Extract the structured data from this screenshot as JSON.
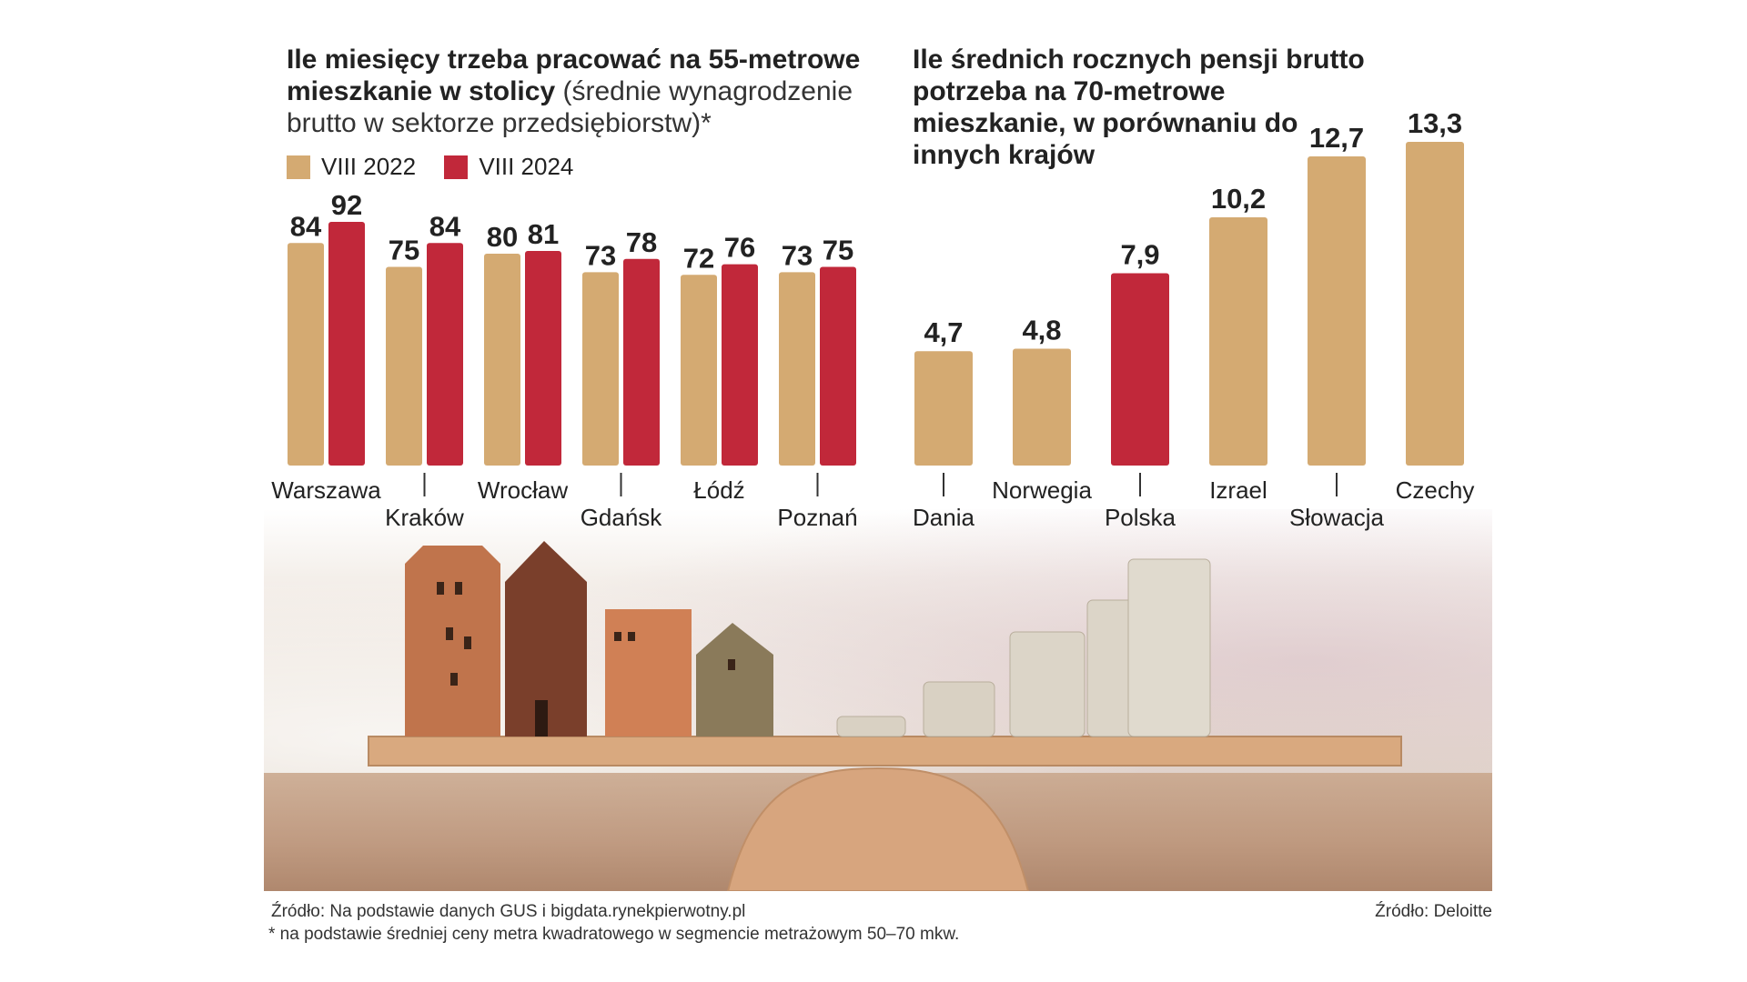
{
  "colors": {
    "gold": "#D4AA72",
    "red": "#C1283A",
    "text": "#222222"
  },
  "left_chart": {
    "title_bold": "Ile miesięcy trzeba pracować na 55-metrowe mieszkanie w stolicy",
    "title_light": "(średnie wynagrodzenie brutto w sektorze przedsiębiorstw)*",
    "legend": [
      "VIII 2022",
      "VIII 2024"
    ]
  },
  "right_chart": {
    "title": "Ile średnich rocznych pensji brutto potrzeba na 70-metrowe mieszkanie, w porównaniu do innych krajów"
  },
  "chart_data": [
    {
      "type": "bar",
      "title": "Ile miesięcy trzeba pracować na 55-metrowe mieszkanie w stolicy (średnie wynagrodzenie brutto w sektorze przedsiębiorstw)*",
      "categories": [
        "Warszawa",
        "Kraków",
        "Wrocław",
        "Gdańsk",
        "Łódź",
        "Poznań"
      ],
      "series": [
        {
          "name": "VIII 2022",
          "values": [
            84,
            75,
            80,
            73,
            72,
            73
          ]
        },
        {
          "name": "VIII 2024",
          "values": [
            92,
            84,
            81,
            78,
            76,
            75
          ]
        }
      ],
      "ylim": [
        0,
        92
      ],
      "xlabel": "",
      "ylabel": ""
    },
    {
      "type": "bar",
      "title": "Ile średnich rocznych pensji brutto potrzeba na 70-metrowe mieszkanie, w porównaniu do innych krajów",
      "categories": [
        "Dania",
        "Norwegia",
        "Polska",
        "Izrael",
        "Słowacja",
        "Czechy"
      ],
      "values": [
        4.7,
        4.8,
        7.9,
        10.2,
        12.7,
        13.3
      ],
      "value_labels": [
        "4,7",
        "4,8",
        "7,9",
        "10,2",
        "12,7",
        "13,3"
      ],
      "highlight": "Polska",
      "ylim": [
        0,
        13.3
      ],
      "xlabel": "",
      "ylabel": ""
    }
  ],
  "footer": {
    "source_left": "Źródło: Na podstawie danych GUS i bigdata.rynekpierwotny.pl",
    "footnote": "* na podstawie średniej ceny metra kwadratowego w segmencie metrażowym 50–70 mkw.",
    "source_right": "Źródło: Deloitte"
  }
}
